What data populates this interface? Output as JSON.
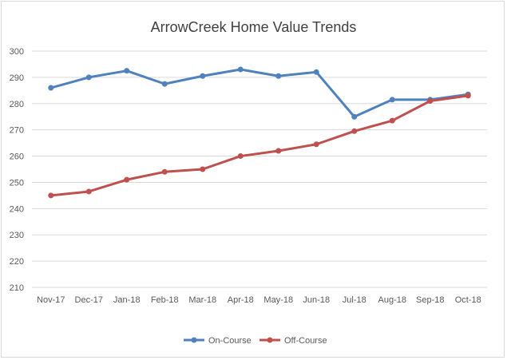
{
  "chart_data": {
    "type": "line",
    "title": "ArrowCreek Home Value Trends",
    "xlabel": "",
    "ylabel": "",
    "categories": [
      "Nov-17",
      "Dec-17",
      "Jan-18",
      "Feb-18",
      "Mar-18",
      "Apr-18",
      "May-18",
      "Jun-18",
      "Jul-18",
      "Aug-18",
      "Sep-18",
      "Oct-18"
    ],
    "ylim": [
      210,
      300
    ],
    "yticks": [
      "210",
      "220",
      "230",
      "240",
      "250",
      "260",
      "270",
      "280",
      "290",
      "300"
    ],
    "grid": true,
    "legend_position": "bottom",
    "series": [
      {
        "name": "On-Course",
        "color": "#4f81bd",
        "values": [
          286,
          290,
          292.5,
          287.5,
          290.5,
          293,
          290.5,
          292,
          275,
          281.5,
          281.5,
          283.5
        ]
      },
      {
        "name": "Off-Course",
        "color": "#c0504d",
        "values": [
          245,
          246.5,
          251,
          254,
          255,
          260,
          262,
          264.5,
          269.5,
          273.5,
          281,
          283
        ]
      }
    ]
  }
}
